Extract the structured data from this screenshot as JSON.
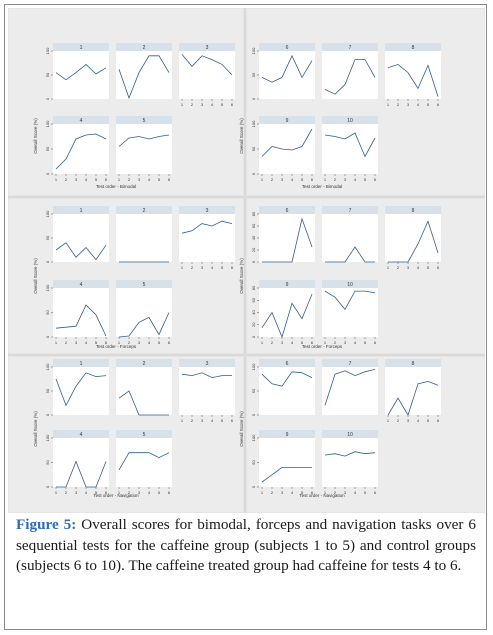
{
  "caption": {
    "label": "Figure 5:",
    "text": "Overall scores for bimodal, forceps and navigation tasks over 6 sequential tests for the caffeine group (subjects 1 to 5) and control groups (subjects 6 to 10). The caffeine treated group had caffeine for tests 4 to 6."
  },
  "colors": {
    "line": "#2f5f8a",
    "strip": "#d6e1ea",
    "plot_bg": "#ffffff",
    "outer_bg": "#dcdcdc",
    "caption_label": "#2d6cb6"
  },
  "chart_data": [
    {
      "type": "line",
      "task": "Bimodal",
      "group": "caffeine",
      "xlabel": "Test order - Bimodal",
      "ylabel": "Overall Score (%)",
      "x": [
        1,
        2,
        3,
        4,
        5,
        6
      ],
      "ylim": [
        0,
        100
      ],
      "yticks": [
        0,
        50,
        100
      ],
      "series": [
        {
          "name": "1",
          "values": [
            55,
            40,
            55,
            72,
            52,
            65
          ]
        },
        {
          "name": "2",
          "values": [
            62,
            2,
            55,
            90,
            90,
            55
          ]
        },
        {
          "name": "3",
          "values": [
            93,
            68,
            90,
            82,
            72,
            50
          ]
        },
        {
          "name": "4",
          "values": [
            10,
            30,
            70,
            78,
            80,
            70
          ]
        },
        {
          "name": "5",
          "values": [
            55,
            72,
            75,
            70,
            75,
            78
          ]
        }
      ]
    },
    {
      "type": "line",
      "task": "Bimodal",
      "group": "control",
      "xlabel": "Test order - Bimodal",
      "ylabel": "Overall Score (%)",
      "x": [
        1,
        2,
        3,
        4,
        5,
        6
      ],
      "ylim": [
        0,
        100
      ],
      "yticks": [
        0,
        50,
        100
      ],
      "series": [
        {
          "name": "6",
          "values": [
            45,
            35,
            45,
            90,
            45,
            80
          ]
        },
        {
          "name": "7",
          "values": [
            20,
            10,
            30,
            82,
            82,
            45
          ]
        },
        {
          "name": "8",
          "values": [
            65,
            72,
            55,
            22,
            70,
            5
          ]
        },
        {
          "name": "9",
          "values": [
            35,
            55,
            50,
            48,
            55,
            90
          ]
        },
        {
          "name": "10",
          "values": [
            78,
            75,
            70,
            82,
            35,
            72
          ]
        }
      ]
    },
    {
      "type": "line",
      "task": "Forceps",
      "group": "caffeine",
      "xlabel": "Test order - Forceps",
      "ylabel": "Overall Score (%)",
      "x": [
        1,
        2,
        3,
        4,
        5,
        6
      ],
      "ylim": [
        0,
        100
      ],
      "yticks": [
        0,
        50,
        100
      ],
      "series": [
        {
          "name": "1",
          "values": [
            25,
            40,
            10,
            30,
            5,
            35
          ]
        },
        {
          "name": "2",
          "values": [
            0,
            0,
            0,
            0,
            0,
            0
          ]
        },
        {
          "name": "3",
          "values": [
            60,
            65,
            80,
            75,
            85,
            80
          ]
        },
        {
          "name": "4",
          "values": [
            18,
            20,
            22,
            65,
            45,
            2
          ]
        },
        {
          "name": "5",
          "values": [
            0,
            2,
            30,
            40,
            5,
            50
          ]
        }
      ]
    },
    {
      "type": "line",
      "task": "Forceps",
      "group": "control",
      "xlabel": "Test order - Forceps",
      "ylabel": "Overall Score (%)",
      "x": [
        1,
        2,
        3,
        4,
        5,
        6
      ],
      "ylim": [
        0,
        80
      ],
      "yticks": [
        0,
        20,
        40,
        60,
        80
      ],
      "series": [
        {
          "name": "6",
          "values": [
            0,
            0,
            0,
            0,
            72,
            25
          ]
        },
        {
          "name": "7",
          "values": [
            0,
            0,
            0,
            25,
            0,
            0
          ]
        },
        {
          "name": "8",
          "values": [
            0,
            0,
            0,
            30,
            68,
            15
          ]
        },
        {
          "name": "9",
          "values": [
            15,
            40,
            0,
            55,
            30,
            70
          ]
        },
        {
          "name": "10",
          "values": [
            75,
            65,
            45,
            75,
            75,
            72
          ]
        }
      ]
    },
    {
      "type": "line",
      "task": "Navigation",
      "group": "caffeine",
      "xlabel": "Test order - Navigation",
      "ylabel": "Overall Score (%)",
      "x": [
        1,
        2,
        3,
        4,
        5,
        6
      ],
      "ylim": [
        0,
        100
      ],
      "yticks": [
        0,
        50,
        100
      ],
      "series": [
        {
          "name": "1",
          "values": [
            75,
            20,
            60,
            88,
            80,
            82
          ]
        },
        {
          "name": "2",
          "values": [
            35,
            50,
            0,
            0,
            0,
            0
          ]
        },
        {
          "name": "3",
          "values": [
            85,
            82,
            88,
            78,
            82,
            82
          ]
        },
        {
          "name": "4",
          "values": [
            0,
            0,
            52,
            0,
            0,
            52
          ]
        },
        {
          "name": "5",
          "values": [
            35,
            70,
            70,
            70,
            60,
            70
          ]
        }
      ]
    },
    {
      "type": "line",
      "task": "Navigation",
      "group": "control",
      "xlabel": "Test order - Navigation",
      "ylabel": "Overall Score (%)",
      "x": [
        1,
        2,
        3,
        4,
        5,
        6
      ],
      "ylim": [
        0,
        100
      ],
      "yticks": [
        0,
        50,
        100
      ],
      "series": [
        {
          "name": "6",
          "values": [
            85,
            65,
            60,
            90,
            88,
            78
          ]
        },
        {
          "name": "7",
          "values": [
            20,
            85,
            92,
            82,
            90,
            95
          ]
        },
        {
          "name": "8",
          "values": [
            0,
            35,
            0,
            65,
            70,
            62
          ]
        },
        {
          "name": "9",
          "values": [
            10,
            25,
            40,
            40,
            40,
            40
          ]
        },
        {
          "name": "10",
          "values": [
            65,
            68,
            63,
            72,
            68,
            70
          ]
        }
      ]
    }
  ]
}
